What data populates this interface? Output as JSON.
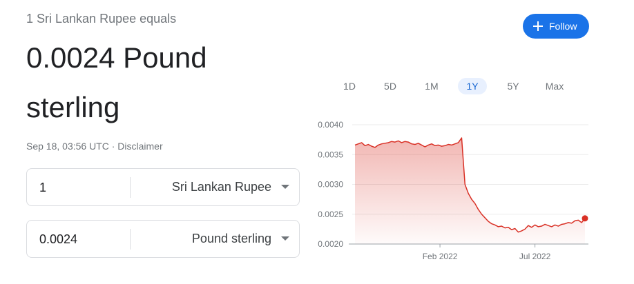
{
  "header": {
    "equals": "1 Sri Lankan Rupee equals",
    "amount": "0.0024 Pound sterling",
    "timestamp": "Sep 18, 03:56 UTC · Disclaimer"
  },
  "follow_button": "Follow",
  "converter": [
    {
      "amount": "1",
      "currency": "Sri Lankan Rupee"
    },
    {
      "amount": "0.0024",
      "currency": "Pound sterling"
    }
  ],
  "ranges": [
    "1D",
    "5D",
    "1M",
    "1Y",
    "5Y",
    "Max"
  ],
  "chart_data": {
    "type": "line",
    "series": [
      {
        "name": "Pound sterling",
        "color": "#d93025",
        "values": [
          0.00366,
          0.00368,
          0.0037,
          0.00365,
          0.00367,
          0.00364,
          0.00362,
          0.00366,
          0.00368,
          0.00369,
          0.0037,
          0.00372,
          0.00371,
          0.00373,
          0.0037,
          0.00372,
          0.00371,
          0.00368,
          0.00367,
          0.00369,
          0.00366,
          0.00363,
          0.00366,
          0.00368,
          0.00365,
          0.00366,
          0.00364,
          0.00365,
          0.00367,
          0.00366,
          0.00368,
          0.0037,
          0.00378,
          0.003,
          0.00285,
          0.00275,
          0.00268,
          0.00258,
          0.0025,
          0.00244,
          0.00238,
          0.00234,
          0.00232,
          0.00229,
          0.0023,
          0.00227,
          0.00228,
          0.00224,
          0.00226,
          0.0022,
          0.00222,
          0.00225,
          0.00231,
          0.00228,
          0.00232,
          0.00229,
          0.0023,
          0.00233,
          0.00231,
          0.00229,
          0.00232,
          0.0023,
          0.00233,
          0.00234,
          0.00236,
          0.00235,
          0.00239,
          0.0024,
          0.00236,
          0.00243
        ]
      }
    ],
    "xlim": [
      0,
      69
    ],
    "xticks": [
      {
        "value": 25.5,
        "label": "Feb 2022"
      },
      {
        "value": 54,
        "label": "Jul 2022"
      }
    ],
    "ylim": [
      0.002,
      0.004
    ],
    "yticks": [
      {
        "value": 0.002,
        "label": "0.0020"
      },
      {
        "value": 0.0025,
        "label": "0.0025"
      },
      {
        "value": 0.003,
        "label": "0.0030"
      },
      {
        "value": 0.0035,
        "label": "0.0035"
      },
      {
        "value": 0.004,
        "label": "0.0040"
      }
    ],
    "grid": true
  }
}
